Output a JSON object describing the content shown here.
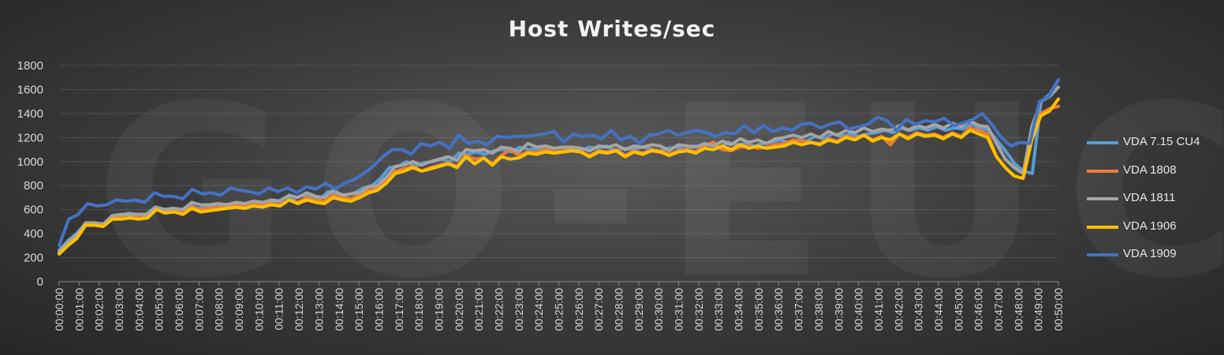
{
  "watermark": "GO-EUC",
  "chart_data": {
    "type": "line",
    "title": "Host Writes/sec",
    "xlabel": "",
    "ylabel": "",
    "ylim": [
      0,
      1800
    ],
    "yticks": [
      0,
      200,
      400,
      600,
      800,
      1000,
      1200,
      1400,
      1600,
      1800
    ],
    "grid": true,
    "legend_position": "right",
    "x_tick_labels": [
      "00:00:00",
      "00:01:00",
      "00:02:00",
      "00:03:00",
      "00:04:00",
      "00:05:00",
      "00:06:00",
      "00:07:00",
      "00:08:00",
      "00:09:00",
      "00:10:00",
      "00:11:00",
      "00:12:00",
      "00:13:00",
      "00:14:00",
      "00:15:00",
      "00:16:00",
      "00:17:00",
      "00:18:00",
      "00:19:00",
      "00:20:00",
      "00:21:00",
      "00:22:00",
      "00:23:00",
      "00:24:00",
      "00:25:00",
      "00:26:00",
      "00:27:00",
      "00:28:00",
      "00:29:00",
      "00:30:00",
      "00:31:00",
      "00:32:00",
      "00:33:00",
      "00:34:00",
      "00:35:00",
      "00:36:00",
      "00:37:00",
      "00:38:00",
      "00:39:00",
      "00:40:00",
      "00:41:00",
      "00:42:00",
      "00:43:00",
      "00:44:00",
      "00:45:00",
      "00:46:00",
      "00:47:00",
      "00:48:00",
      "00:49:00",
      "00:50:00"
    ],
    "points_per_minute": 2,
    "series": [
      {
        "name": "VDA 7.15 CU4",
        "color": "#5b9bd5",
        "values": [
          260,
          340,
          400,
          480,
          490,
          470,
          540,
          550,
          570,
          560,
          560,
          620,
          600,
          610,
          590,
          640,
          610,
          620,
          630,
          640,
          650,
          640,
          660,
          650,
          670,
          660,
          700,
          690,
          720,
          700,
          690,
          750,
          730,
          720,
          740,
          780,
          800,
          860,
          950,
          960,
          1000,
          960,
          990,
          1000,
          1020,
          1000,
          1070,
          1060,
          1080,
          1060,
          1090,
          1100,
          1080,
          1120,
          1100,
          1110,
          1100,
          1110,
          1120,
          1110,
          1090,
          1120,
          1110,
          1130,
          1090,
          1110,
          1100,
          1120,
          1110,
          1080,
          1110,
          1120,
          1100,
          1130,
          1120,
          1150,
          1110,
          1160,
          1140,
          1150,
          1130,
          1150,
          1160,
          1180,
          1160,
          1180,
          1170,
          1210,
          1190,
          1230,
          1210,
          1230,
          1210,
          1230,
          1240,
          1260,
          1240,
          1280,
          1260,
          1280,
          1260,
          1290,
          1260,
          1280,
          1270,
          1310,
          1280,
          1260,
          1170,
          1080,
          980,
          920,
          900,
          1500,
          1560,
          1680
        ]
      },
      {
        "name": "VDA 1808",
        "color": "#ed7d31",
        "values": [
          240,
          310,
          370,
          480,
          470,
          460,
          530,
          530,
          540,
          530,
          540,
          610,
          580,
          600,
          580,
          620,
          600,
          610,
          620,
          630,
          640,
          630,
          650,
          640,
          650,
          640,
          680,
          660,
          700,
          680,
          670,
          720,
          700,
          690,
          720,
          760,
          780,
          840,
          920,
          940,
          960,
          920,
          950,
          970,
          990,
          960,
          1050,
          1020,
          1030,
          980,
          1050,
          1100,
          1050,
          1080,
          1080,
          1100,
          1080,
          1090,
          1100,
          1080,
          1050,
          1090,
          1080,
          1100,
          1050,
          1090,
          1070,
          1100,
          1090,
          1060,
          1090,
          1100,
          1080,
          1130,
          1160,
          1100,
          1090,
          1120,
          1130,
          1110,
          1120,
          1140,
          1150,
          1180,
          1170,
          1160,
          1150,
          1190,
          1170,
          1210,
          1190,
          1220,
          1180,
          1210,
          1140,
          1230,
          1200,
          1240,
          1220,
          1230,
          1200,
          1240,
          1210,
          1280,
          1260,
          1230,
          1040,
          950,
          880,
          860,
          1200,
          1400,
          1440,
          1460
        ]
      },
      {
        "name": "VDA 1811",
        "color": "#a5a5a5",
        "values": [
          250,
          330,
          390,
          490,
          490,
          480,
          550,
          560,
          560,
          560,
          560,
          620,
          600,
          610,
          600,
          660,
          640,
          640,
          650,
          640,
          660,
          650,
          670,
          660,
          680,
          670,
          720,
          700,
          740,
          710,
          700,
          760,
          720,
          730,
          740,
          790,
          800,
          870,
          960,
          970,
          1000,
          970,
          1000,
          1020,
          1040,
          1010,
          1100,
          1090,
          1100,
          1070,
          1120,
          1110,
          1080,
          1150,
          1120,
          1130,
          1110,
          1120,
          1120,
          1110,
          1090,
          1130,
          1120,
          1140,
          1100,
          1130,
          1120,
          1140,
          1130,
          1090,
          1140,
          1130,
          1120,
          1150,
          1130,
          1170,
          1140,
          1190,
          1160,
          1180,
          1150,
          1190,
          1200,
          1220,
          1200,
          1230,
          1200,
          1250,
          1220,
          1260,
          1240,
          1280,
          1250,
          1270,
          1260,
          1300,
          1260,
          1300,
          1280,
          1310,
          1280,
          1320,
          1290,
          1340,
          1300,
          1290,
          1150,
          1020,
          950,
          900,
          1290,
          1500,
          1540,
          1620
        ]
      },
      {
        "name": "VDA 1906",
        "color": "#ffc000",
        "values": [
          230,
          300,
          360,
          470,
          470,
          460,
          520,
          520,
          530,
          520,
          530,
          600,
          570,
          580,
          560,
          610,
          580,
          590,
          600,
          610,
          620,
          610,
          630,
          620,
          640,
          630,
          680,
          650,
          680,
          660,
          650,
          700,
          680,
          670,
          700,
          740,
          760,
          820,
          900,
          920,
          950,
          920,
          940,
          960,
          980,
          950,
          1040,
          980,
          1030,
          970,
          1040,
          1020,
          1030,
          1070,
          1060,
          1080,
          1070,
          1080,
          1090,
          1080,
          1040,
          1080,
          1070,
          1090,
          1040,
          1080,
          1060,
          1090,
          1080,
          1050,
          1080,
          1090,
          1070,
          1110,
          1100,
          1130,
          1100,
          1140,
          1110,
          1130,
          1110,
          1120,
          1130,
          1160,
          1140,
          1160,
          1140,
          1180,
          1160,
          1200,
          1180,
          1220,
          1170,
          1200,
          1180,
          1230,
          1190,
          1230,
          1210,
          1220,
          1190,
          1230,
          1200,
          1260,
          1230,
          1200,
          1040,
          950,
          880,
          860,
          1180,
          1380,
          1420,
          1520
        ]
      },
      {
        "name": "VDA 1909",
        "color": "#4472c4",
        "values": [
          300,
          520,
          560,
          650,
          630,
          640,
          680,
          670,
          680,
          660,
          740,
          710,
          710,
          690,
          770,
          730,
          740,
          720,
          780,
          760,
          750,
          730,
          780,
          750,
          780,
          740,
          790,
          770,
          820,
          770,
          820,
          850,
          900,
          960,
          1040,
          1100,
          1100,
          1060,
          1150,
          1130,
          1160,
          1110,
          1220,
          1150,
          1170,
          1140,
          1210,
          1200,
          1210,
          1210,
          1220,
          1230,
          1250,
          1160,
          1230,
          1210,
          1220,
          1190,
          1260,
          1180,
          1210,
          1150,
          1220,
          1230,
          1260,
          1220,
          1240,
          1260,
          1240,
          1210,
          1240,
          1230,
          1300,
          1240,
          1300,
          1250,
          1280,
          1260,
          1310,
          1320,
          1280,
          1310,
          1330,
          1270,
          1290,
          1310,
          1370,
          1340,
          1260,
          1350,
          1310,
          1340,
          1330,
          1360,
          1300,
          1320,
          1350,
          1400,
          1310,
          1200,
          1130,
          1160,
          1150,
          1500,
          1540,
          1680
        ]
      }
    ]
  }
}
